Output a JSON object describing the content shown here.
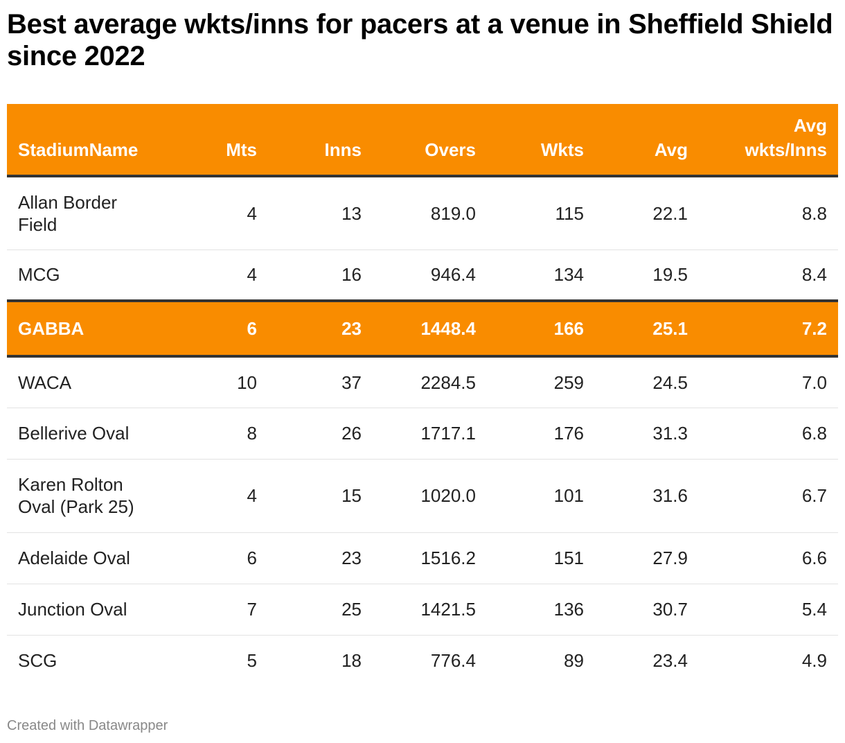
{
  "title": "Best average wkts/inns for pacers at a venue in Sheffield Shield since 2022",
  "footer": "Created with Datawrapper",
  "colors": {
    "header_bg": "#f98c00",
    "highlight_bg": "#f98c00",
    "header_text": "#ffffff",
    "divider": "#333333"
  },
  "chart_data": {
    "type": "table",
    "title": "Best average wkts/inns for pacers at a venue in Sheffield Shield since 2022",
    "columns": [
      "StadiumName",
      "Mts",
      "Inns",
      "Overs",
      "Wkts",
      "Avg",
      "Avg wkts/Inns"
    ],
    "highlighted_row": "GABBA",
    "rows": [
      [
        "Allan Border Field",
        "4",
        "13",
        "819.0",
        "115",
        "22.1",
        "8.8"
      ],
      [
        "MCG",
        "4",
        "16",
        "946.4",
        "134",
        "19.5",
        "8.4"
      ],
      [
        "GABBA",
        "6",
        "23",
        "1448.4",
        "166",
        "25.1",
        "7.2"
      ],
      [
        "WACA",
        "10",
        "37",
        "2284.5",
        "259",
        "24.5",
        "7.0"
      ],
      [
        "Bellerive Oval",
        "8",
        "26",
        "1717.1",
        "176",
        "31.3",
        "6.8"
      ],
      [
        "Karen Rolton Oval (Park 25)",
        "4",
        "15",
        "1020.0",
        "101",
        "31.6",
        "6.7"
      ],
      [
        "Adelaide Oval",
        "6",
        "23",
        "1516.2",
        "151",
        "27.9",
        "6.6"
      ],
      [
        "Junction Oval",
        "7",
        "25",
        "1421.5",
        "136",
        "30.7",
        "5.4"
      ],
      [
        "SCG",
        "5",
        "18",
        "776.4",
        "89",
        "23.4",
        "4.9"
      ]
    ]
  }
}
